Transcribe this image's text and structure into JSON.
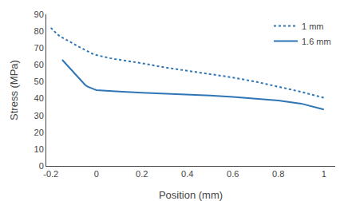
{
  "chart_data": {
    "type": "line",
    "xlabel": "Position (mm)",
    "ylabel": "Stress (MPa)",
    "xlim": [
      -0.22,
      1.05
    ],
    "ylim": [
      0,
      90
    ],
    "xticks": [
      -0.2,
      0,
      0.2,
      0.4,
      0.6,
      0.8,
      1.0
    ],
    "yticks": [
      0,
      10,
      20,
      30,
      40,
      50,
      60,
      70,
      80,
      90
    ],
    "grid": false,
    "legend": "upper right",
    "series": [
      {
        "name": "1 mm",
        "color": "#2e75b6",
        "line_style": "dotted",
        "x": [
          -0.2,
          -0.19,
          -0.18,
          -0.17,
          -0.16,
          -0.15,
          -0.14,
          -0.13,
          -0.12,
          -0.11,
          -0.1,
          -0.09,
          -0.08,
          -0.07,
          -0.06,
          -0.05,
          -0.04,
          -0.03,
          -0.02,
          -0.01,
          0.0,
          0.02,
          0.04,
          0.06,
          0.08,
          0.1,
          0.15,
          0.2,
          0.3,
          0.4,
          0.5,
          0.6,
          0.7,
          0.8,
          0.9,
          1.0
        ],
        "values": [
          82.0,
          80.5,
          79.2,
          78.0,
          77.0,
          76.2,
          75.5,
          74.8,
          74.0,
          73.2,
          72.5,
          71.8,
          71.0,
          70.3,
          69.5,
          68.8,
          68.2,
          67.5,
          66.8,
          66.2,
          65.8,
          65.2,
          64.5,
          64.0,
          63.5,
          63.0,
          62.0,
          61.0,
          58.5,
          56.5,
          54.5,
          52.5,
          50.0,
          47.0,
          44.0,
          40.5
        ]
      },
      {
        "name": "1.6 mm",
        "color": "#2e75b6",
        "line_style": "solid",
        "x": [
          -0.15,
          -0.14,
          -0.13,
          -0.12,
          -0.11,
          -0.1,
          -0.09,
          -0.08,
          -0.07,
          -0.06,
          -0.05,
          -0.04,
          -0.03,
          -0.02,
          -0.01,
          0.0,
          0.02,
          0.05,
          0.1,
          0.2,
          0.3,
          0.4,
          0.5,
          0.6,
          0.7,
          0.8,
          0.9,
          1.0
        ],
        "values": [
          63.0,
          61.5,
          60.0,
          58.5,
          57.0,
          55.5,
          54.0,
          52.5,
          51.0,
          49.5,
          48.2,
          47.2,
          46.5,
          46.0,
          45.5,
          45.0,
          44.8,
          44.5,
          44.2,
          43.5,
          43.0,
          42.5,
          41.8,
          41.0,
          40.0,
          38.8,
          37.0,
          33.5
        ]
      }
    ]
  }
}
